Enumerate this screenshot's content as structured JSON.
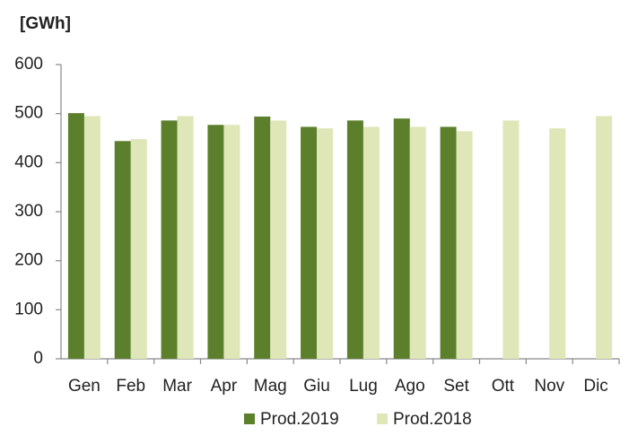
{
  "chart_data": {
    "type": "bar",
    "y_label": "[GWh]",
    "categories": [
      "Gen",
      "Feb",
      "Mar",
      "Apr",
      "Mag",
      "Giu",
      "Lug",
      "Ago",
      "Set",
      "Ott",
      "Nov",
      "Dic"
    ],
    "series": [
      {
        "name": "Prod.2019",
        "color": "#5b7f2b",
        "values": [
          501,
          444,
          486,
          477,
          494,
          473,
          486,
          490,
          473,
          null,
          null,
          null
        ]
      },
      {
        "name": "Prod.2018",
        "color": "#dfe6b8",
        "values": [
          495,
          448,
          495,
          477,
          486,
          470,
          473,
          473,
          464,
          486,
          470,
          495
        ]
      }
    ],
    "ylim": [
      0,
      600
    ],
    "yticks": [
      0,
      100,
      200,
      300,
      400,
      500,
      600
    ],
    "grid": false
  }
}
